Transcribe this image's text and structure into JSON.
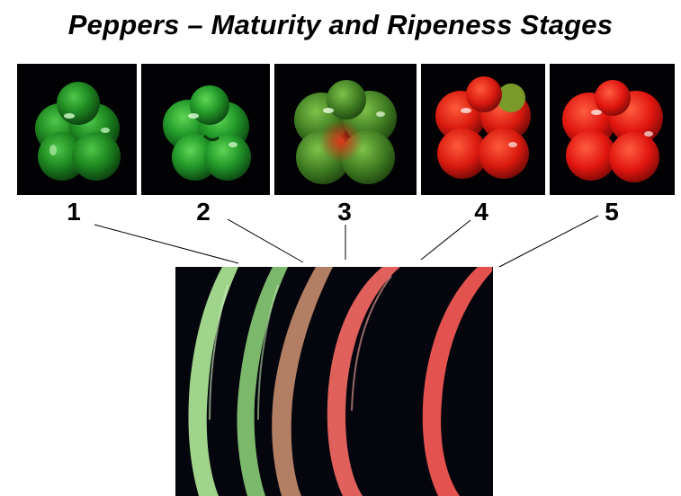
{
  "title": "Peppers – Maturity and Ripeness Stages",
  "stages": [
    {
      "label": "1",
      "color": "#1e7a1c"
    },
    {
      "label": "2",
      "color": "#25921f"
    },
    {
      "label": "3",
      "color": "#4a8a25"
    },
    {
      "label": "4",
      "color": "#d8190f"
    },
    {
      "label": "5",
      "color": "#e0150f"
    }
  ],
  "slice_colors": [
    "#9fd48a",
    "#86c078",
    "#b8836a",
    "#e0605c",
    "#e4524f"
  ]
}
